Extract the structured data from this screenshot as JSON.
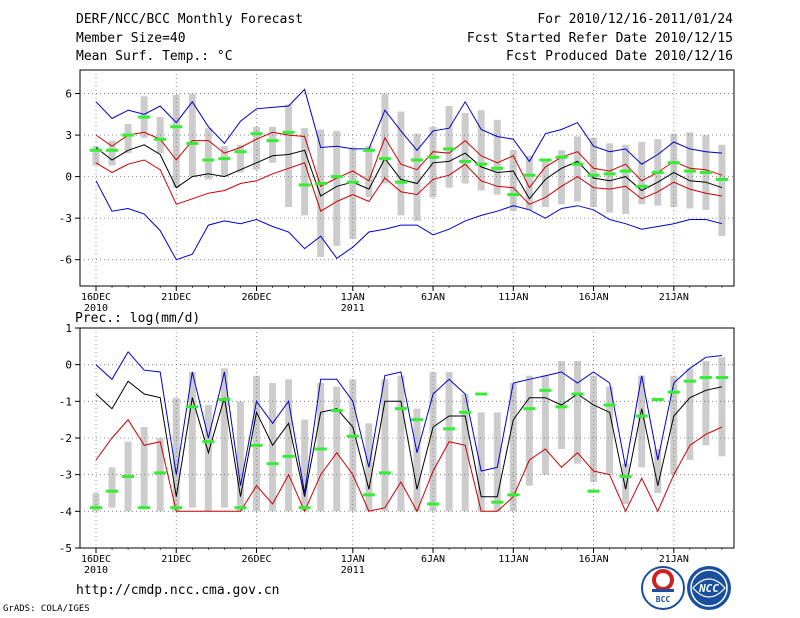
{
  "header": {
    "title_lines": [
      "DERF/NCC/BCC Monthly Forecast",
      "Member Size=40",
      "Mean Surf. Temp.: °C"
    ],
    "right_lines": [
      "For 2010/12/16-2011/01/24",
      "Fcst Started Refer Date 2010/12/15",
      "Fcst Produced Date 2010/12/16"
    ]
  },
  "footer": {
    "url": "http://cmdp.ncc.cma.gov.cn",
    "credit": "GrADS: COLA/IGES"
  },
  "logos": {
    "bcc": "BCC",
    "ncc": "NCC"
  },
  "colors": {
    "max_line": "#0000cc",
    "min_line": "#cc0000",
    "mean_line": "#000000",
    "spread_bar": "#cccccc",
    "obs_marker": "#33ee33"
  },
  "chart_data": [
    {
      "type": "line",
      "title": "Mean Surf. Temp.: °C",
      "xlabel": "",
      "ylabel": "",
      "days": 40,
      "xticks": [
        {
          "day": 1,
          "label": "16DEC",
          "sub": "2010"
        },
        {
          "day": 6,
          "label": "21DEC",
          "sub": ""
        },
        {
          "day": 11,
          "label": "26DEC",
          "sub": ""
        },
        {
          "day": 17,
          "label": "1JAN",
          "sub": "2011"
        },
        {
          "day": 22,
          "label": "6JAN",
          "sub": ""
        },
        {
          "day": 27,
          "label": "11JAN",
          "sub": ""
        },
        {
          "day": 32,
          "label": "16JAN",
          "sub": ""
        },
        {
          "day": 37,
          "label": "21JAN",
          "sub": ""
        }
      ],
      "yticks": [
        6,
        3,
        0,
        -3,
        -6
      ],
      "ylim": [
        -7.9,
        7.7
      ],
      "series": [
        {
          "name": "max",
          "values": [
            5.4,
            4.2,
            4.8,
            4.5,
            5.1,
            3.9,
            5.4,
            3.6,
            2.4,
            4.0,
            4.9,
            5.0,
            5.1,
            6.3,
            2.1,
            2.2,
            2.0,
            2.0,
            4.8,
            3.3,
            1.9,
            3.3,
            3.5,
            5.4,
            3.4,
            2.9,
            2.7,
            1.1,
            3.1,
            3.4,
            3.9,
            2.2,
            1.8,
            2.0,
            0.9,
            1.6,
            2.5,
            2.0,
            1.8,
            1.7
          ]
        },
        {
          "name": "upper",
          "values": [
            3.0,
            2.2,
            3.0,
            3.2,
            2.7,
            1.2,
            2.6,
            2.6,
            1.7,
            2.1,
            2.7,
            3.2,
            3.0,
            2.9,
            -0.7,
            -0.1,
            0.4,
            -0.3,
            2.8,
            0.9,
            0.5,
            1.8,
            1.7,
            2.6,
            1.5,
            1.0,
            1.5,
            -0.8,
            0.7,
            1.4,
            1.8,
            0.6,
            0.4,
            0.9,
            -0.3,
            0.3,
            1.1,
            0.6,
            0.5,
            0.1
          ]
        },
        {
          "name": "mean",
          "values": [
            2.1,
            1.2,
            1.9,
            2.3,
            1.6,
            -0.8,
            0.0,
            0.2,
            0.0,
            0.5,
            1.0,
            1.5,
            1.6,
            1.9,
            -1.4,
            -0.7,
            -0.4,
            -0.9,
            1.3,
            -0.2,
            -0.5,
            1.0,
            1.1,
            1.7,
            0.7,
            0.3,
            0.4,
            -1.6,
            -0.2,
            0.6,
            1.1,
            -0.1,
            -0.3,
            0.0,
            -1.0,
            -0.4,
            0.3,
            -0.3,
            -0.4,
            -0.8
          ]
        },
        {
          "name": "lower",
          "values": [
            1.0,
            0.3,
            0.9,
            1.2,
            0.5,
            -2.0,
            -1.6,
            -1.2,
            -1.0,
            -0.5,
            -0.3,
            0.2,
            0.6,
            1.0,
            -2.5,
            -1.8,
            -1.3,
            -1.8,
            -0.1,
            -1.1,
            -1.3,
            -0.2,
            0.1,
            0.9,
            -0.3,
            -0.7,
            -0.8,
            -2.0,
            -1.5,
            -0.7,
            0.0,
            -0.8,
            -0.9,
            -0.7,
            -1.6,
            -1.1,
            -0.4,
            -0.9,
            -1.2,
            -1.4
          ]
        },
        {
          "name": "min",
          "values": [
            -0.3,
            -2.5,
            -2.3,
            -2.7,
            -3.9,
            -6.0,
            -5.6,
            -3.5,
            -3.2,
            -3.4,
            -3.1,
            -3.6,
            -4.0,
            -5.2,
            -4.3,
            -5.9,
            -5.1,
            -4.0,
            -3.8,
            -3.5,
            -3.5,
            -4.2,
            -3.8,
            -3.2,
            -2.8,
            -2.5,
            -2.1,
            -2.4,
            -3.0,
            -2.3,
            -2.1,
            -2.4,
            -3.1,
            -3.4,
            -3.8,
            -3.6,
            -3.4,
            -3.1,
            -3.1,
            -3.4
          ]
        }
      ],
      "bars": {
        "low": [
          0.8,
          0.8,
          1.7,
          2.8,
          1.7,
          -0.8,
          0.0,
          -0.2,
          0.0,
          0.3,
          0.5,
          1.0,
          -2.2,
          -2.8,
          -5.8,
          -5.0,
          -4.5,
          -1.5,
          -0.5,
          -2.8,
          -3.2,
          -1.5,
          -0.8,
          -0.5,
          -1.0,
          -1.3,
          -2.5,
          -2.4,
          -2.2,
          -2.0,
          -1.8,
          -2.2,
          -2.6,
          -2.7,
          -2.0,
          -2.1,
          -2.2,
          -2.3,
          -2.4,
          -4.3
        ],
        "high": [
          2.2,
          2.6,
          3.8,
          5.8,
          4.3,
          5.9,
          6.0,
          3.5,
          2.2,
          2.3,
          3.6,
          3.6,
          5.2,
          3.5,
          3.4,
          3.3,
          2.1,
          2.2,
          6.0,
          4.7,
          3.1,
          3.6,
          5.1,
          4.6,
          4.8,
          4.1,
          1.9,
          1.5,
          1.3,
          1.9,
          2.9,
          2.8,
          2.4,
          2.3,
          2.5,
          2.7,
          3.1,
          3.2,
          3.0,
          2.3
        ]
      },
      "markers": [
        1.9,
        1.9,
        3.0,
        4.3,
        2.7,
        3.6,
        2.4,
        1.2,
        1.3,
        1.8,
        3.1,
        2.6,
        3.2,
        -0.6,
        -0.5,
        0.0,
        -0.4,
        1.9,
        1.3,
        -0.4,
        1.2,
        1.4,
        2.0,
        1.1,
        0.9,
        0.6,
        -1.3,
        0.1,
        1.2,
        1.4,
        0.9,
        0.1,
        0.2,
        0.4,
        -0.7,
        0.3,
        1.0,
        0.4,
        0.3,
        -0.2
      ]
    },
    {
      "type": "line",
      "title": "Prec.: log(mm/d)",
      "xlabel": "",
      "ylabel": "",
      "days": 40,
      "xticks": [
        {
          "day": 1,
          "label": "16DEC",
          "sub": "2010"
        },
        {
          "day": 6,
          "label": "21DEC",
          "sub": ""
        },
        {
          "day": 11,
          "label": "26DEC",
          "sub": ""
        },
        {
          "day": 17,
          "label": "1JAN",
          "sub": "2011"
        },
        {
          "day": 22,
          "label": "6JAN",
          "sub": ""
        },
        {
          "day": 27,
          "label": "11JAN",
          "sub": ""
        },
        {
          "day": 32,
          "label": "16JAN",
          "sub": ""
        },
        {
          "day": 37,
          "label": "21JAN",
          "sub": ""
        }
      ],
      "yticks": [
        1,
        0,
        -1,
        -2,
        -3,
        -4,
        -5
      ],
      "ylim": [
        -5,
        1
      ],
      "series": [
        {
          "name": "max",
          "values": [
            0.0,
            -0.4,
            0.35,
            -0.15,
            -0.2,
            -3.0,
            -0.2,
            -2.0,
            -0.2,
            -3.3,
            -1.0,
            -1.6,
            -1.0,
            -3.5,
            -0.4,
            -0.4,
            -1.0,
            -2.8,
            -0.3,
            -0.2,
            -2.4,
            -0.8,
            -0.4,
            -0.8,
            -2.9,
            -2.8,
            -0.5,
            -0.4,
            -0.3,
            -0.2,
            -0.5,
            -0.2,
            -0.5,
            -2.8,
            -0.3,
            -2.6,
            -0.5,
            -0.1,
            0.2,
            0.25
          ]
        },
        {
          "name": "mean",
          "values": [
            -0.8,
            -1.2,
            -0.45,
            -0.8,
            -0.9,
            -3.6,
            -0.9,
            -2.4,
            -0.9,
            -3.6,
            -1.3,
            -2.2,
            -1.6,
            -3.6,
            -1.3,
            -1.2,
            -1.7,
            -3.4,
            -1.0,
            -1.0,
            -3.4,
            -1.7,
            -1.4,
            -1.4,
            -3.6,
            -3.6,
            -1.5,
            -0.9,
            -0.9,
            -1.1,
            -0.8,
            -1.1,
            -1.3,
            -3.4,
            -1.2,
            -3.3,
            -1.4,
            -0.9,
            -0.7,
            -0.6
          ]
        },
        {
          "name": "min",
          "values": [
            -2.6,
            -2.0,
            -1.5,
            -2.2,
            -2.1,
            -4.0,
            -4.0,
            -4.0,
            -4.0,
            -4.0,
            -3.3,
            -3.8,
            -3.0,
            -4.0,
            -3.0,
            -2.4,
            -3.0,
            -4.0,
            -3.9,
            -3.2,
            -4.0,
            -2.9,
            -2.1,
            -2.2,
            -4.0,
            -4.0,
            -3.6,
            -2.6,
            -2.3,
            -2.8,
            -2.4,
            -2.9,
            -3.0,
            -4.0,
            -3.1,
            -4.0,
            -3.0,
            -2.2,
            -1.9,
            -1.7
          ]
        }
      ],
      "bars": {
        "low": [
          -4.0,
          -3.9,
          -4.0,
          -3.9,
          -4.0,
          -4.0,
          -3.9,
          -4.0,
          -3.9,
          -4.0,
          -4.0,
          -4.0,
          -4.0,
          -4.0,
          -4.0,
          -4.0,
          -4.0,
          -4.0,
          -4.0,
          -4.0,
          -4.0,
          -4.0,
          -4.0,
          -4.0,
          -4.0,
          -4.0,
          -4.0,
          -3.3,
          -3.0,
          -2.3,
          -2.7,
          -3.2,
          -3.0,
          -3.8,
          -2.8,
          -3.5,
          -3.0,
          -2.6,
          -2.2,
          -2.5
        ],
        "high": [
          -3.5,
          -2.8,
          -2.1,
          -1.7,
          -2.0,
          -0.9,
          -0.2,
          -1.1,
          -0.1,
          -1.0,
          -0.3,
          -0.5,
          -0.4,
          -1.5,
          -0.5,
          -0.6,
          -0.4,
          -1.6,
          -0.4,
          -0.3,
          -1.2,
          -0.2,
          -0.2,
          -0.8,
          -1.3,
          -1.3,
          -0.5,
          -0.3,
          -0.3,
          0.1,
          0.1,
          -0.3,
          -0.6,
          -2.7,
          -0.3,
          -2.3,
          -0.3,
          -0.1,
          0.1,
          0.2
        ]
      },
      "markers": [
        -3.9,
        -3.45,
        -3.05,
        -3.9,
        -2.95,
        -3.9,
        -1.15,
        -2.1,
        -0.95,
        -3.9,
        -2.2,
        -2.7,
        -2.5,
        -3.9,
        -2.3,
        -1.25,
        -1.95,
        -3.55,
        -2.95,
        -1.2,
        -1.5,
        -3.8,
        -1.75,
        -1.3,
        -0.8,
        -3.75,
        -3.55,
        -1.2,
        -0.7,
        -1.15,
        -0.8,
        -3.45,
        -1.1,
        -3.05,
        -1.4,
        -0.95,
        -0.75,
        -0.45,
        -0.35,
        -0.35
      ]
    }
  ]
}
